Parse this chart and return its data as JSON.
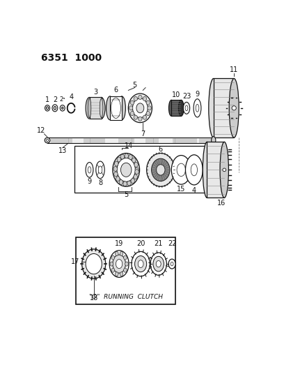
{
  "title": "6351  1000",
  "bg_color": "#ffffff",
  "fig_width": 4.08,
  "fig_height": 5.33,
  "dpi": 100
}
